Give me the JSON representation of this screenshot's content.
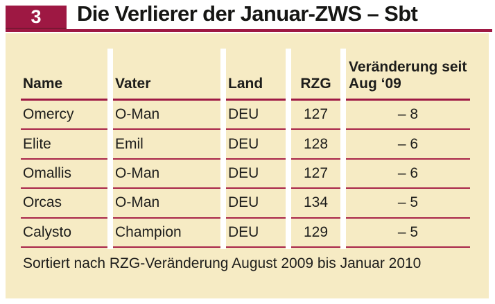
{
  "header": {
    "badge": "3",
    "title": "Die Verlierer der Januar-ZWS – Sbt"
  },
  "table": {
    "columns": [
      {
        "label": "Name"
      },
      {
        "label": "Vater"
      },
      {
        "label": "Land"
      },
      {
        "label": "RZG"
      },
      {
        "label": "Veränderung seit Aug ‘09"
      }
    ],
    "rows": [
      {
        "name": "Omercy",
        "vater": "O-Man",
        "land": "DEU",
        "rzg": "127",
        "veraenderung": "– 8"
      },
      {
        "name": "Elite",
        "vater": "Emil",
        "land": "DEU",
        "rzg": "128",
        "veraenderung": "– 6"
      },
      {
        "name": "Omallis",
        "vater": "O-Man",
        "land": "DEU",
        "rzg": "127",
        "veraenderung": "– 6"
      },
      {
        "name": "Orcas",
        "vater": "O-Man",
        "land": "DEU",
        "rzg": "134",
        "veraenderung": "– 5"
      },
      {
        "name": "Calysto",
        "vater": "Champion",
        "land": "DEU",
        "rzg": "129",
        "veraenderung": "– 5"
      }
    ]
  },
  "footer": {
    "note": "Sortiert nach RZG-Veränderung August 2009 bis Januar 2010"
  },
  "colors": {
    "accent": "#9e1843",
    "accent_dark": "#7a1733",
    "row_line": "#a82448",
    "panel_bg": "#f6ebc4",
    "badge_text": "#ffffff"
  }
}
